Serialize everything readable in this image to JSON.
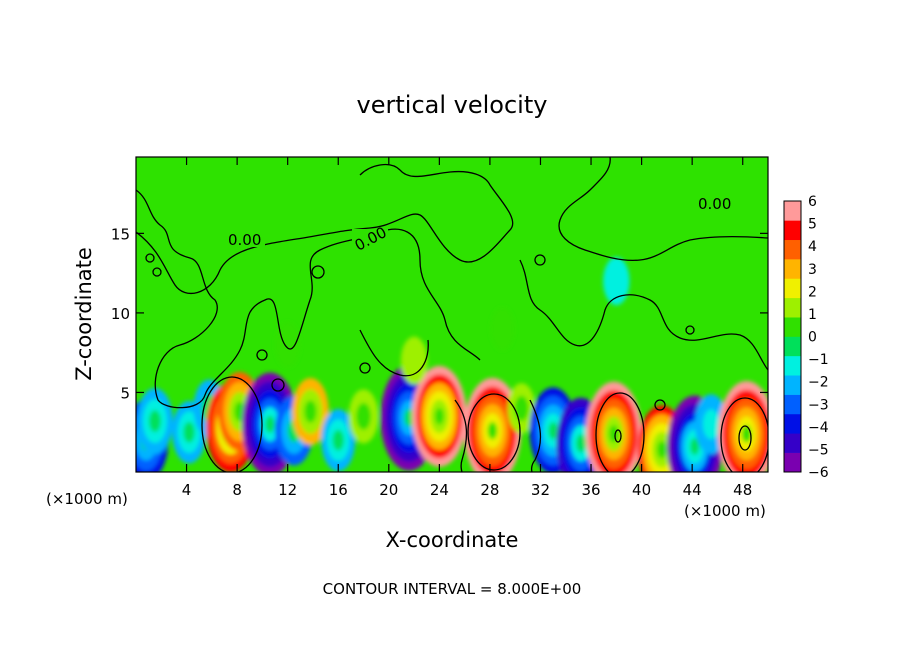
{
  "chart_data": {
    "type": "heatmap",
    "title": "vertical velocity",
    "xlabel": "X-coordinate",
    "ylabel": "Z-coordinate",
    "x_units": "(×1000 m)",
    "x_ticks": [
      4,
      8,
      12,
      16,
      20,
      24,
      28,
      32,
      36,
      40,
      44,
      48
    ],
    "y_ticks": [
      5,
      10,
      15
    ],
    "xlim": [
      0,
      50
    ],
    "ylim": [
      0,
      19.8
    ],
    "colorbar": {
      "ticks": [
        6,
        5,
        4,
        3,
        2,
        1,
        0,
        -1,
        -2,
        -3,
        -4,
        -5,
        -6
      ],
      "range": [
        -6,
        6
      ],
      "colors": [
        "#7a00b0",
        "#3500c8",
        "#0010e6",
        "#0060ff",
        "#00b4ff",
        "#00f0e0",
        "#00e05a",
        "#30e000",
        "#9ef000",
        "#f0f000",
        "#ffb400",
        "#ff6000",
        "#ff0000",
        "#ff9a9a"
      ]
    },
    "contour_labels": [
      "0.00",
      "0.00",
      "0.00"
    ],
    "contour_interval_text": "CONTOUR INTERVAL = 8.000E+00",
    "cells": [
      {
        "x": 0.8,
        "z": 2.0,
        "w": -3.8
      },
      {
        "x": 1.5,
        "z": 3.2,
        "w": -2.5
      },
      {
        "x": 4.2,
        "z": 2.5,
        "w": -2.2
      },
      {
        "x": 5.8,
        "z": 4.0,
        "w": -1.8
      },
      {
        "x": 7.5,
        "z": 2.8,
        "w": 4.5
      },
      {
        "x": 8.2,
        "z": 3.8,
        "w": 3.6
      },
      {
        "x": 10.6,
        "z": 3.0,
        "w": -5.6
      },
      {
        "x": 12.5,
        "z": 2.6,
        "w": -2.8
      },
      {
        "x": 13.8,
        "z": 3.8,
        "w": 2.6
      },
      {
        "x": 16.0,
        "z": 2.0,
        "w": -2.2
      },
      {
        "x": 18.0,
        "z": 3.5,
        "w": 1.5
      },
      {
        "x": 21.6,
        "z": 3.4,
        "w": -5.8
      },
      {
        "x": 24.0,
        "z": 3.5,
        "w": 5.4
      },
      {
        "x": 28.2,
        "z": 2.6,
        "w": 5.8
      },
      {
        "x": 30.5,
        "z": 4.0,
        "w": 1.2
      },
      {
        "x": 33.0,
        "z": 2.6,
        "w": -4.2
      },
      {
        "x": 35.2,
        "z": 1.8,
        "w": -4.6
      },
      {
        "x": 37.8,
        "z": 2.4,
        "w": 5.7
      },
      {
        "x": 41.6,
        "z": 1.4,
        "w": 4.4
      },
      {
        "x": 44.2,
        "z": 1.6,
        "w": -5.5
      },
      {
        "x": 45.5,
        "z": 3.0,
        "w": -2.0
      },
      {
        "x": 48.3,
        "z": 2.4,
        "w": 5.8
      },
      {
        "x": 12.0,
        "z": 8.0,
        "w": 0.8
      },
      {
        "x": 22.0,
        "z": 7.0,
        "w": 1.0
      },
      {
        "x": 29.0,
        "z": 9.0,
        "w": 0.6
      },
      {
        "x": 38.0,
        "z": 12.0,
        "w": -1.0
      }
    ]
  }
}
